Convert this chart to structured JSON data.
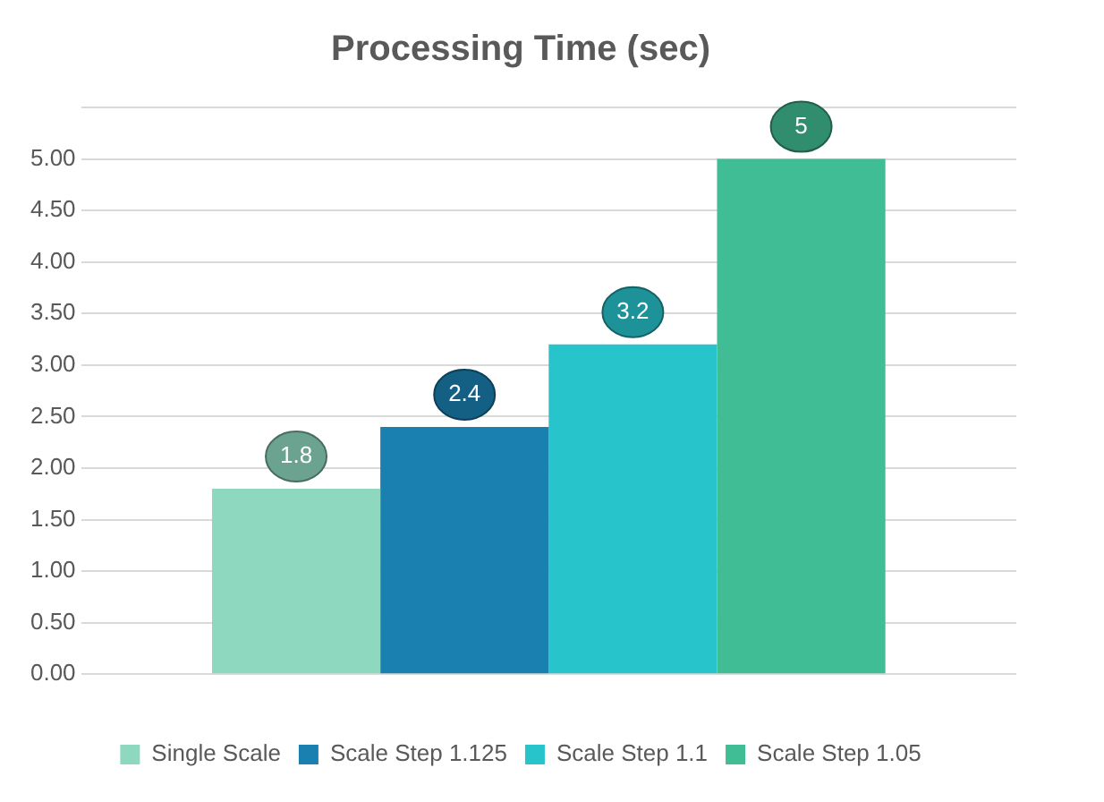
{
  "chart_data": {
    "type": "bar",
    "title": "Processing Time (sec)",
    "categories": [
      null
    ],
    "series": [
      {
        "name": "Single Scale",
        "color": "#8fd8c0",
        "values": [
          1.8
        ]
      },
      {
        "name": "Scale Step 1.125",
        "color": "#1a80b0",
        "values": [
          2.4
        ]
      },
      {
        "name": "Scale Step 1.1",
        "color": "#27c4cc",
        "values": [
          3.2
        ]
      },
      {
        "name": "Scale Step 1.05",
        "color": "#40bd94",
        "values": [
          5
        ]
      }
    ],
    "ylim": [
      0,
      5.5
    ],
    "yticks": [
      {
        "value": 0,
        "label": "0.00"
      },
      {
        "value": 0.5,
        "label": "0.50"
      },
      {
        "value": 1,
        "label": "1.00"
      },
      {
        "value": 1.5,
        "label": "1.50"
      },
      {
        "value": 2,
        "label": "2.00"
      },
      {
        "value": 2.5,
        "label": "2.50"
      },
      {
        "value": 3,
        "label": "3.00"
      },
      {
        "value": 3.5,
        "label": "3.50"
      },
      {
        "value": 4,
        "label": "4.00"
      },
      {
        "value": 4.5,
        "label": "4.50"
      },
      {
        "value": 5,
        "label": "5.00"
      },
      {
        "value": 5.5,
        "label": null
      }
    ],
    "grid": "y",
    "legend": "bottom",
    "data_labels": true
  }
}
